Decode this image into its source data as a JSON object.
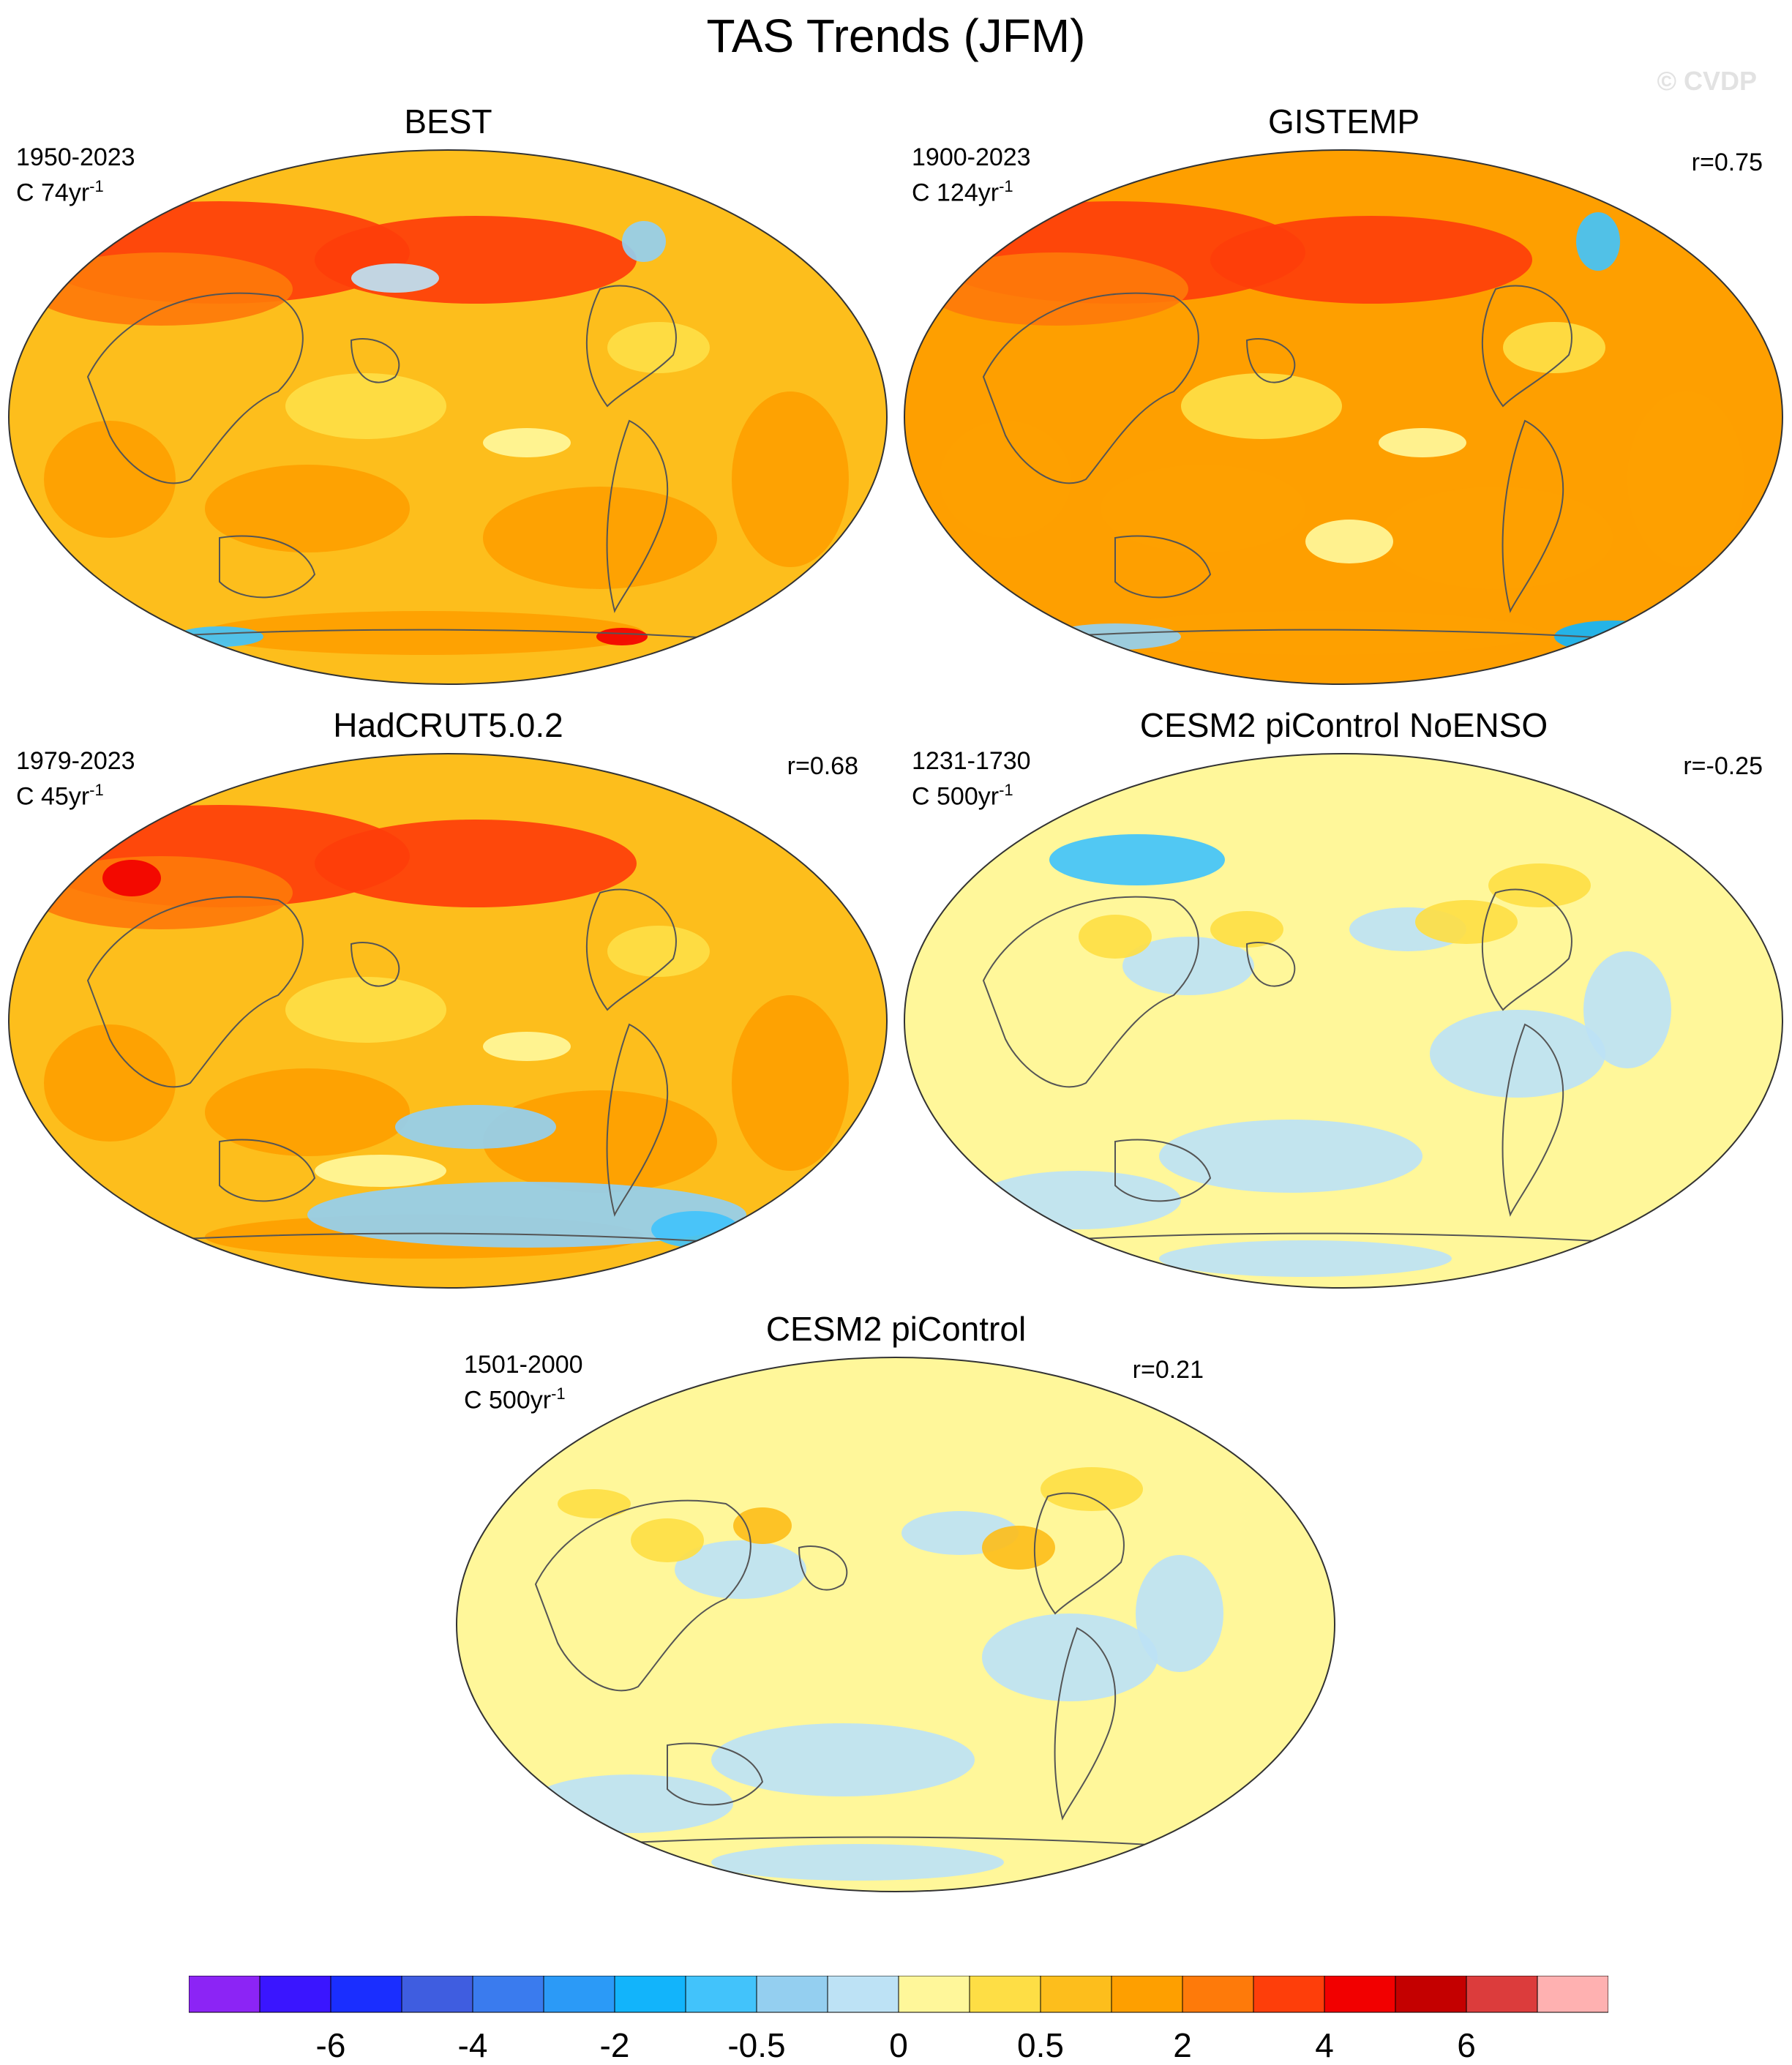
{
  "figure": {
    "title": "TAS Trends (JFM)",
    "watermark": "© CVDP"
  },
  "panels": [
    {
      "title": "BEST",
      "period": "1950-2023",
      "trend_unit_prefix": "C 74yr",
      "trend_unit_sup": "-1",
      "corr": "",
      "regime": "warm",
      "base_color": "#fdbe1c"
    },
    {
      "title": "GISTEMP",
      "period": "1900-2023",
      "trend_unit_prefix": "C 124yr",
      "trend_unit_sup": "-1",
      "corr": "r=0.75",
      "regime": "warm",
      "base_color": "#fe9f00"
    },
    {
      "title": "HadCRUT5.0.2",
      "period": "1979-2023",
      "trend_unit_prefix": "C 45yr",
      "trend_unit_sup": "-1",
      "corr": "r=0.68",
      "regime": "warm",
      "base_color": "#fdbe1c"
    },
    {
      "title": "CESM2 piControl NoENSO",
      "period": "1231-1730",
      "trend_unit_prefix": "C 500yr",
      "trend_unit_sup": "-1",
      "corr": "r=-0.25",
      "regime": "neutral",
      "base_color": "#fff79a"
    },
    {
      "title": "CESM2 piControl",
      "period": "1501-2000",
      "trend_unit_prefix": "C 500yr",
      "trend_unit_sup": "-1",
      "corr": "r=0.21",
      "regime": "neutral",
      "base_color": "#fff79a"
    }
  ],
  "colorbar": {
    "colors": [
      "#8c24f5",
      "#3a15ff",
      "#1a2eff",
      "#3f5de0",
      "#3a7bee",
      "#2b9af7",
      "#12b4fb",
      "#42c3fb",
      "#94cff0",
      "#bde2f5",
      "#fff79a",
      "#fede45",
      "#fdbe1c",
      "#fe9f00",
      "#fe7a0a",
      "#fe3e0a",
      "#f20000",
      "#c40000",
      "#dc3c3c",
      "#ffb1b1"
    ],
    "labels": [
      {
        "text": "-6",
        "boundary": 2
      },
      {
        "text": "-4",
        "boundary": 4
      },
      {
        "text": "-2",
        "boundary": 6
      },
      {
        "text": "-0.5",
        "boundary": 8
      },
      {
        "text": "0",
        "boundary": 10
      },
      {
        "text": "0.5",
        "boundary": 12
      },
      {
        "text": "2",
        "boundary": 14
      },
      {
        "text": "4",
        "boundary": 16
      },
      {
        "text": "6",
        "boundary": 18
      }
    ]
  }
}
